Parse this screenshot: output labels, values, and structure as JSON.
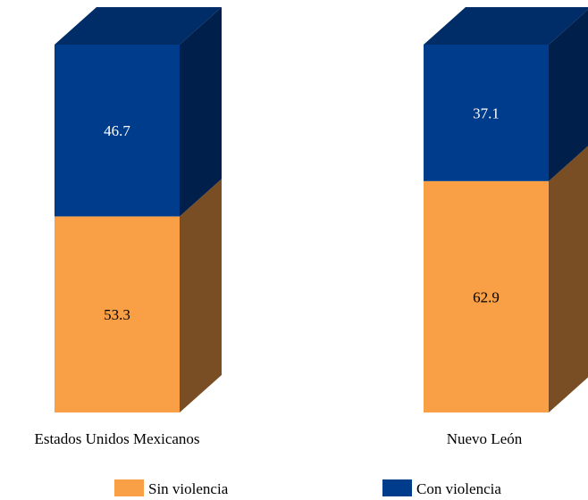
{
  "colors": {
    "sin_front": "#F99F45",
    "sin_side": "#7A4E24",
    "con_front": "#003C8C",
    "con_side": "#00204B",
    "con_top": "#002C68",
    "sin_label": "#000000",
    "con_label": "#FFFFFF"
  },
  "chart_data": {
    "type": "bar",
    "stacked": true,
    "three_d": true,
    "categories": [
      "Estados Unidos Mexicanos",
      "Nuevo León"
    ],
    "series": [
      {
        "name": "Sin violencia",
        "values": [
          53.3,
          62.9
        ],
        "labels": [
          "53.3",
          "62.9"
        ]
      },
      {
        "name": "Con violencia",
        "values": [
          46.7,
          37.1
        ],
        "labels": [
          "46.7",
          "37.1"
        ]
      }
    ],
    "ylim": [
      0,
      100
    ],
    "grid": false,
    "legend_position": "bottom"
  }
}
